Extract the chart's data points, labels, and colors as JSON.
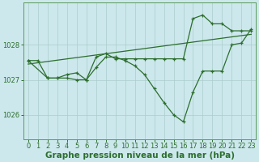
{
  "title": "Graphe pression niveau de la mer (hPa)",
  "bg_color": "#cce8ec",
  "grid_color": "#aacccc",
  "line_color": "#2d6e2d",
  "xlim": [
    -0.5,
    23.5
  ],
  "ylim": [
    1025.3,
    1029.2
  ],
  "yticks": [
    1026,
    1027,
    1028
  ],
  "xticks": [
    0,
    1,
    2,
    3,
    4,
    5,
    6,
    7,
    8,
    9,
    10,
    11,
    12,
    13,
    14,
    15,
    16,
    17,
    18,
    19,
    20,
    21,
    22,
    23
  ],
  "line1_x": [
    0,
    1,
    2,
    3,
    4,
    5,
    6,
    7,
    8,
    9,
    10,
    11,
    12,
    13,
    14,
    15,
    16,
    17,
    18,
    19,
    20,
    21,
    22,
    23
  ],
  "line1_y": [
    1027.55,
    1027.55,
    1027.05,
    1027.05,
    1027.05,
    1027.0,
    1027.0,
    1027.35,
    1027.65,
    1027.65,
    1027.55,
    1027.4,
    1027.15,
    1026.75,
    1026.35,
    1026.0,
    1025.8,
    1026.65,
    1027.25,
    1027.25,
    1027.25,
    1028.0,
    1028.05,
    1028.45
  ],
  "line2_x": [
    0,
    2,
    3,
    4,
    5,
    6,
    7,
    8,
    9,
    10,
    11,
    12,
    13,
    14,
    15,
    16,
    17,
    18,
    19,
    20,
    21,
    22,
    23
  ],
  "line2_y": [
    1027.55,
    1027.05,
    1027.05,
    1027.15,
    1027.2,
    1027.0,
    1027.65,
    1027.75,
    1027.6,
    1027.6,
    1027.6,
    1027.6,
    1027.6,
    1027.6,
    1027.6,
    1027.6,
    1028.75,
    1028.85,
    1028.6,
    1028.6,
    1028.4,
    1028.4,
    1028.4
  ],
  "line3_x": [
    0,
    23
  ],
  "line3_y": [
    1027.45,
    1028.3
  ],
  "tick_fontsize": 6,
  "xlabel_fontsize": 7.5
}
